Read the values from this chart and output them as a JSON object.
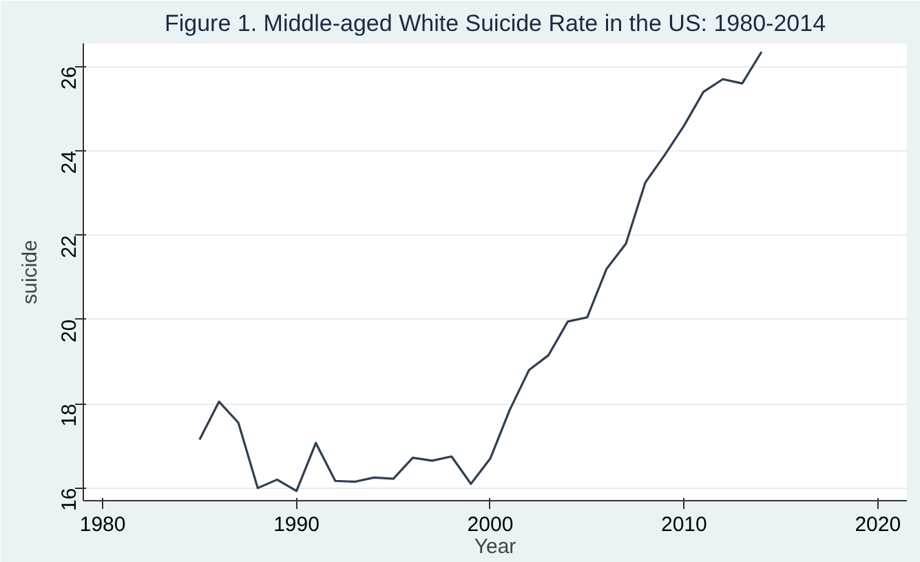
{
  "chart_data": {
    "type": "line",
    "title": "Figure 1. Middle-aged White Suicide Rate in the US: 1980-2014",
    "xlabel": "Year",
    "ylabel": "suicide",
    "x": [
      1985,
      1986,
      1987,
      1988,
      1989,
      1990,
      1991,
      1992,
      1993,
      1994,
      1995,
      1996,
      1997,
      1998,
      1999,
      2000,
      2001,
      2002,
      2003,
      2004,
      2005,
      2006,
      2007,
      2008,
      2009,
      2010,
      2011,
      2012,
      2013,
      2014
    ],
    "series": [
      {
        "color": "#2e3f50",
        "values": [
          17.15,
          18.05,
          17.55,
          16.0,
          16.2,
          15.93,
          17.07,
          16.17,
          16.15,
          16.25,
          16.22,
          16.72,
          16.65,
          16.75,
          16.1,
          16.7,
          17.85,
          18.8,
          19.15,
          19.95,
          20.05,
          21.2,
          21.8,
          23.25,
          23.9,
          24.6,
          25.4,
          25.7,
          25.6,
          26.35
        ]
      }
    ],
    "xlim": [
      1979,
      2021.5
    ],
    "xticks": [
      1980,
      1990,
      2000,
      2010,
      2020
    ],
    "ylim": [
      15.7,
      26.55
    ],
    "yticks": [
      16,
      18,
      20,
      22,
      24,
      26
    ],
    "grid": "y",
    "marker": "none",
    "line_style": "solid"
  }
}
